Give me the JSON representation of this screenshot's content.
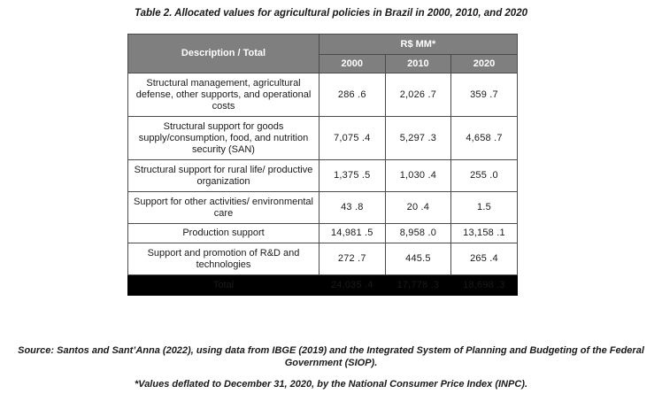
{
  "caption": "Table 2. Allocated values for agricultural policies in Brazil in 2000, 2010, and 2020",
  "table": {
    "header_desc": "Description / Total",
    "header_unit": "R$ MM*",
    "years": [
      "2000",
      "2010",
      "2020"
    ],
    "rows": [
      {
        "desc": "Structural management, agricultural defense, other supports, and operational costs",
        "v2000": "286 .6",
        "v2010": "2,026 .7",
        "v2020": "359 .7"
      },
      {
        "desc": "Structural support for goods supply/consumption, food, and nutrition security (SAN)",
        "v2000": "7,075 .4",
        "v2010": "5,297 .3",
        "v2020": "4,658 .7"
      },
      {
        "desc": "Structural support for rural life/ productive organization",
        "v2000": "1,375 .5",
        "v2010": "1,030 .4",
        "v2020": "255 .0"
      },
      {
        "desc": "Support for other activities/ environmental care",
        "v2000": "43 .8",
        "v2010": "20 .4",
        "v2020": "1.5"
      },
      {
        "desc": "Production support",
        "v2000": "14,981 .5",
        "v2010": "8,958 .0",
        "v2020": "13,158 .1"
      },
      {
        "desc": "Support and promotion of R&D and technologies",
        "v2000": "272 .7",
        "v2010": "445.5",
        "v2020": "265 .4"
      }
    ],
    "total": {
      "label": "Total",
      "v2000": "24,035 .4",
      "v2010": "17,778 .3",
      "v2020": "18,698 .3"
    }
  },
  "source": "Source: Santos and Sant’Anna (2022), using data from IBGE (2019) and the Integrated System of Planning and Budgeting of the Federal Government (SIOP).",
  "note": "*Values deflated to December 31, 2020, by the National Consumer Price Index (INPC)."
}
